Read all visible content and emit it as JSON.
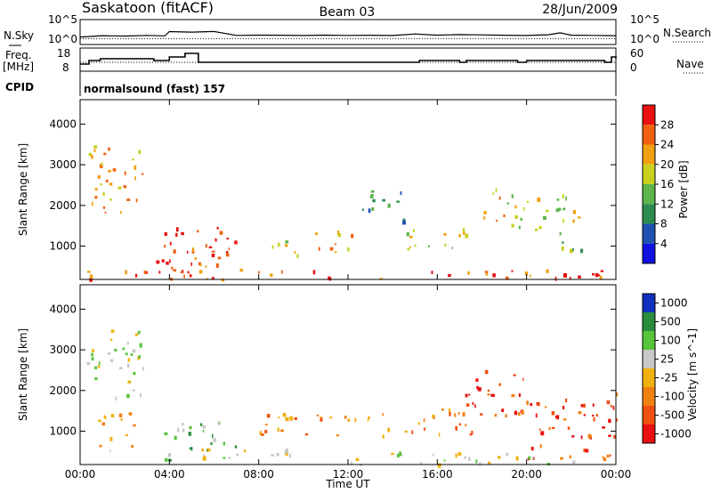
{
  "header": {
    "station": "Saskatoon (fitACF)",
    "beam": "Beam 03",
    "date": "28/Jun/2009"
  },
  "left_labels": {
    "nsky": "N.Sky",
    "freq_line1": "Freq.",
    "freq_line2": "[MHz]",
    "cpid": "CPID"
  },
  "right_labels": {
    "nsearch": "N.Search",
    "nave": "Nave"
  },
  "cpid_value": "normalsound (fast) 157",
  "colors": {
    "power": [
      "#1010e0",
      "#2050b0",
      "#2e8c50",
      "#5cb44a",
      "#c8d020",
      "#f0a010",
      "#f06010",
      "#e81010"
    ],
    "velocity": [
      "#1030c0",
      "#2a8c3c",
      "#58c43c",
      "#c8c8c8",
      "#f0b010",
      "#f08010",
      "#f05010",
      "#e81010"
    ]
  },
  "chart_data": [
    {
      "type": "line",
      "panel": "noise",
      "x": [
        0,
        1,
        2,
        3,
        3.8,
        4,
        5,
        6,
        7,
        8,
        9,
        10,
        11,
        12,
        13,
        14,
        15,
        16,
        17,
        18,
        19,
        20,
        21,
        21.5,
        22,
        23,
        24
      ],
      "series": [
        {
          "values": [
            10,
            22,
            18,
            26,
            20,
            240,
            180,
            260,
            25,
            30,
            28,
            24,
            30,
            26,
            28,
            24,
            60,
            30,
            42,
            35,
            28,
            24,
            40,
            120,
            30,
            25,
            22
          ]
        },
        {
          "values": [
            4,
            4,
            4,
            4,
            4,
            4,
            4,
            4,
            4,
            4,
            4,
            4,
            4,
            4,
            4,
            4,
            4,
            4,
            4,
            4,
            4,
            4,
            4,
            4,
            4,
            4,
            4
          ]
        }
      ],
      "ylabel_left": "N.Sky",
      "ylabel_right": "N.Search",
      "left_ticks": [
        "10^5",
        "10^0"
      ],
      "right_ticks": [
        "10^5",
        "10^0"
      ]
    },
    {
      "type": "line",
      "panel": "frequency",
      "x": [
        0,
        0.4,
        0.9,
        3.3,
        4.0,
        4.7,
        5.3,
        14.8,
        15.2,
        17.0,
        17.3,
        19.6,
        20.0,
        23.5,
        23.8,
        24
      ],
      "series": [
        {
          "values": [
            11,
            13,
            14,
            13,
            15,
            17,
            12,
            12,
            13,
            12,
            13,
            12,
            13,
            12,
            15,
            14
          ]
        },
        {
          "values": [
            12,
            12,
            12,
            12,
            12,
            12,
            12,
            12,
            12,
            12,
            12,
            12,
            12,
            12,
            12,
            12
          ]
        }
      ],
      "ylabel_left": "Freq. [MHz]",
      "ylabel_right": "Nave",
      "left_ticks": [
        18,
        8
      ],
      "right_ticks": [
        60,
        0
      ]
    },
    {
      "type": "heatmap",
      "panel": "power",
      "ylabel": "Slant Range [km]",
      "y_ticks": [
        1000,
        2000,
        3000,
        4000
      ],
      "x_ticks": [
        "00:00",
        "04:00",
        "08:00",
        "12:00",
        "16:00",
        "20:00",
        "00:00"
      ],
      "xlim": [
        0,
        24
      ],
      "ylim": [
        180,
        4600
      ],
      "colorbar_label": "Power [dB]",
      "colorbar_ticks": [
        "4",
        "8",
        "12",
        "16",
        "20",
        "24",
        "28"
      ],
      "clim": [
        0,
        32
      ],
      "regions": [
        {
          "t": [
            0.3,
            2.9
          ],
          "r": [
            1800,
            3500
          ],
          "level": 5
        },
        {
          "t": [
            3.4,
            6.8
          ],
          "r": [
            250,
            1500
          ],
          "level": 7
        },
        {
          "t": [
            5.0,
            7.0
          ],
          "r": [
            500,
            1300
          ],
          "level": 6
        },
        {
          "t": [
            8.5,
            10.2
          ],
          "r": [
            800,
            1300
          ],
          "level": 4
        },
        {
          "t": [
            10.3,
            12.2
          ],
          "r": [
            850,
            1500
          ],
          "level": 5
        },
        {
          "t": [
            12.5,
            14.5
          ],
          "r": [
            1500,
            2500
          ],
          "level": 2
        },
        {
          "t": [
            14.6,
            17.8
          ],
          "r": [
            900,
            1500
          ],
          "level": 4
        },
        {
          "t": [
            18.0,
            19.0
          ],
          "r": [
            1600,
            2600
          ],
          "level": 5
        },
        {
          "t": [
            19.0,
            22.5
          ],
          "r": [
            1300,
            2300
          ],
          "level": 4
        },
        {
          "t": [
            21.5,
            23.0
          ],
          "r": [
            700,
            1200
          ],
          "level": 3
        },
        {
          "t": [
            0,
            24
          ],
          "r": [
            200,
            450
          ],
          "level": 6
        }
      ]
    },
    {
      "type": "heatmap",
      "panel": "velocity",
      "ylabel": "Slant Range [km]",
      "y_ticks": [
        1000,
        2000,
        3000,
        4000
      ],
      "x_ticks": [
        "00:00",
        "04:00",
        "08:00",
        "12:00",
        "16:00",
        "20:00",
        "00:00"
      ],
      "xlim": [
        0,
        24
      ],
      "ylim": [
        180,
        4600
      ],
      "xlabel": "Time UT",
      "colorbar_label": "Velocity [m s^-1]",
      "colorbar_ticks": [
        "1000",
        "500",
        "100",
        "25",
        "-25",
        "-100",
        "-500",
        "-1000"
      ],
      "regions": [
        {
          "t": [
            0.3,
            3.0
          ],
          "r": [
            1800,
            3500
          ],
          "level": 3
        },
        {
          "t": [
            0.5,
            2.5
          ],
          "r": [
            500,
            1500
          ],
          "level": 4
        },
        {
          "t": [
            3.5,
            7.0
          ],
          "r": [
            300,
            1300
          ],
          "level": 2
        },
        {
          "t": [
            5.0,
            10.0
          ],
          "r": [
            250,
            600
          ],
          "level": 3
        },
        {
          "t": [
            8.0,
            14.0
          ],
          "r": [
            900,
            1500
          ],
          "level": 5
        },
        {
          "t": [
            14.5,
            18.0
          ],
          "r": [
            900,
            1700
          ],
          "level": 5
        },
        {
          "t": [
            17.0,
            20.0
          ],
          "r": [
            1400,
            2600
          ],
          "level": 6
        },
        {
          "t": [
            20.0,
            24.0
          ],
          "r": [
            300,
            2000
          ],
          "level": 6
        },
        {
          "t": [
            12.0,
            24.0
          ],
          "r": [
            200,
            500
          ],
          "level": 3
        }
      ]
    }
  ]
}
